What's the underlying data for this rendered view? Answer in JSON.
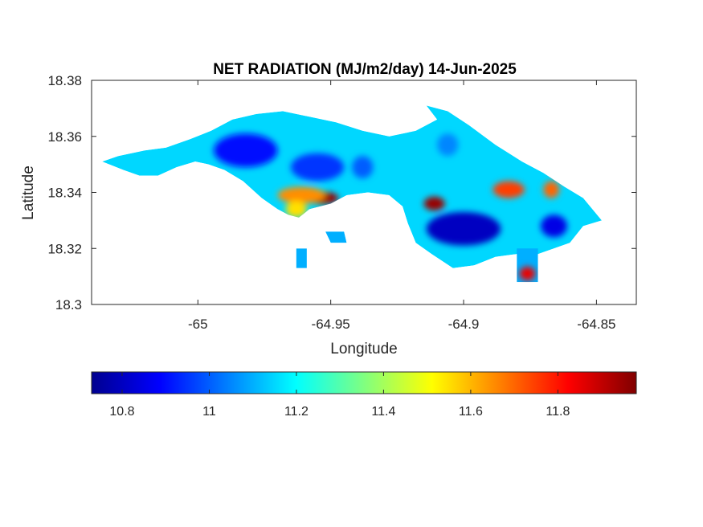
{
  "chart_data": {
    "type": "heatmap",
    "title": "NET RADIATION (MJ/m2/day) 14-Jun-2025",
    "xlabel": "Longitude",
    "ylabel": "Latitude",
    "xlim": [
      -65.04,
      -64.835
    ],
    "ylim": [
      18.3,
      18.38
    ],
    "x_ticks": [
      {
        "value": -65.0,
        "label": "-65"
      },
      {
        "value": -64.95,
        "label": "-64.95"
      },
      {
        "value": -64.9,
        "label": "-64.9"
      },
      {
        "value": -64.85,
        "label": "-64.85"
      }
    ],
    "y_ticks": [
      {
        "value": 18.3,
        "label": "18.3"
      },
      {
        "value": 18.32,
        "label": "18.32"
      },
      {
        "value": 18.34,
        "label": "18.34"
      },
      {
        "value": 18.36,
        "label": "18.36"
      },
      {
        "value": 18.38,
        "label": "18.38"
      }
    ],
    "colormap": "jet",
    "colorbar": {
      "location": "bottom",
      "range": [
        10.73,
        11.98
      ],
      "ticks": [
        {
          "value": 10.8,
          "label": "10.8"
        },
        {
          "value": 11.0,
          "label": "11"
        },
        {
          "value": 11.2,
          "label": "11.2"
        },
        {
          "value": 11.4,
          "label": "11.4"
        },
        {
          "value": 11.6,
          "label": "11.6"
        },
        {
          "value": 11.8,
          "label": "11.8"
        }
      ],
      "colors": [
        "#00008f",
        "#0000ff",
        "#0080ff",
        "#00ffff",
        "#80ff80",
        "#ffff00",
        "#ff8000",
        "#ff0000",
        "#800000"
      ]
    },
    "island_outline": [
      [
        -65.036,
        18.351
      ],
      [
        -65.03,
        18.353
      ],
      [
        -65.02,
        18.355
      ],
      [
        -65.012,
        18.356
      ],
      [
        -65.003,
        18.359
      ],
      [
        -64.995,
        18.362
      ],
      [
        -64.987,
        18.366
      ],
      [
        -64.978,
        18.368
      ],
      [
        -64.968,
        18.369
      ],
      [
        -64.958,
        18.367
      ],
      [
        -64.948,
        18.365
      ],
      [
        -64.938,
        18.362
      ],
      [
        -64.928,
        18.36
      ],
      [
        -64.918,
        18.362
      ],
      [
        -64.91,
        18.366
      ],
      [
        -64.914,
        18.371
      ],
      [
        -64.906,
        18.369
      ],
      [
        -64.898,
        18.364
      ],
      [
        -64.888,
        18.357
      ],
      [
        -64.878,
        18.351
      ],
      [
        -64.87,
        18.347
      ],
      [
        -64.862,
        18.342
      ],
      [
        -64.855,
        18.338
      ],
      [
        -64.848,
        18.33
      ],
      [
        -64.855,
        18.328
      ],
      [
        -64.86,
        18.322
      ],
      [
        -64.866,
        18.32
      ],
      [
        -64.872,
        18.318
      ],
      [
        -64.88,
        18.318
      ],
      [
        -64.888,
        18.317
      ],
      [
        -64.896,
        18.314
      ],
      [
        -64.904,
        18.313
      ],
      [
        -64.912,
        18.318
      ],
      [
        -64.918,
        18.322
      ],
      [
        -64.921,
        18.329
      ],
      [
        -64.923,
        18.335
      ],
      [
        -64.928,
        18.339
      ],
      [
        -64.936,
        18.34
      ],
      [
        -64.944,
        18.339
      ],
      [
        -64.95,
        18.336
      ],
      [
        -64.958,
        18.334
      ],
      [
        -64.962,
        18.331
      ],
      [
        -64.966,
        18.332
      ],
      [
        -64.97,
        18.334
      ],
      [
        -64.976,
        18.338
      ],
      [
        -64.983,
        18.344
      ],
      [
        -64.99,
        18.348
      ],
      [
        -64.996,
        18.35
      ],
      [
        -65.001,
        18.351
      ],
      [
        -65.008,
        18.349
      ],
      [
        -65.015,
        18.346
      ],
      [
        -65.022,
        18.346
      ],
      [
        -65.028,
        18.348
      ]
    ],
    "islets": [
      [
        [
          -64.952,
          18.326
        ],
        [
          -64.945,
          18.326
        ],
        [
          -64.944,
          18.322
        ],
        [
          -64.95,
          18.322
        ]
      ],
      [
        [
          -64.963,
          18.32
        ],
        [
          -64.959,
          18.32
        ],
        [
          -64.959,
          18.313
        ],
        [
          -64.963,
          18.313
        ]
      ],
      [
        [
          -64.88,
          18.32
        ],
        [
          -64.872,
          18.32
        ],
        [
          -64.872,
          18.308
        ],
        [
          -64.88,
          18.308
        ]
      ]
    ],
    "hotspots": [
      {
        "x": -64.953,
        "y": 18.338,
        "rx": 0.006,
        "ry": 0.0022,
        "value": 11.95
      },
      {
        "x": -64.961,
        "y": 18.339,
        "rx": 0.009,
        "ry": 0.003,
        "value": 11.65
      },
      {
        "x": -64.963,
        "y": 18.334,
        "rx": 0.004,
        "ry": 0.003,
        "value": 11.55
      },
      {
        "x": -64.911,
        "y": 18.336,
        "rx": 0.004,
        "ry": 0.0025,
        "value": 11.95
      },
      {
        "x": -64.883,
        "y": 18.341,
        "rx": 0.006,
        "ry": 0.003,
        "value": 11.75
      },
      {
        "x": -64.867,
        "y": 18.341,
        "rx": 0.003,
        "ry": 0.003,
        "value": 11.7
      },
      {
        "x": -64.876,
        "y": 18.311,
        "rx": 0.003,
        "ry": 0.0025,
        "value": 11.85
      }
    ],
    "coldspots": [
      {
        "x": -64.982,
        "y": 18.355,
        "rx": 0.012,
        "ry": 0.006,
        "value": 10.9
      },
      {
        "x": -64.955,
        "y": 18.349,
        "rx": 0.01,
        "ry": 0.005,
        "value": 10.95
      },
      {
        "x": -64.9,
        "y": 18.327,
        "rx": 0.014,
        "ry": 0.006,
        "value": 10.8
      },
      {
        "x": -64.866,
        "y": 18.328,
        "rx": 0.005,
        "ry": 0.004,
        "value": 10.85
      },
      {
        "x": -64.906,
        "y": 18.357,
        "rx": 0.004,
        "ry": 0.004,
        "value": 11.05
      },
      {
        "x": -64.938,
        "y": 18.349,
        "rx": 0.004,
        "ry": 0.004,
        "value": 11.0
      }
    ]
  }
}
